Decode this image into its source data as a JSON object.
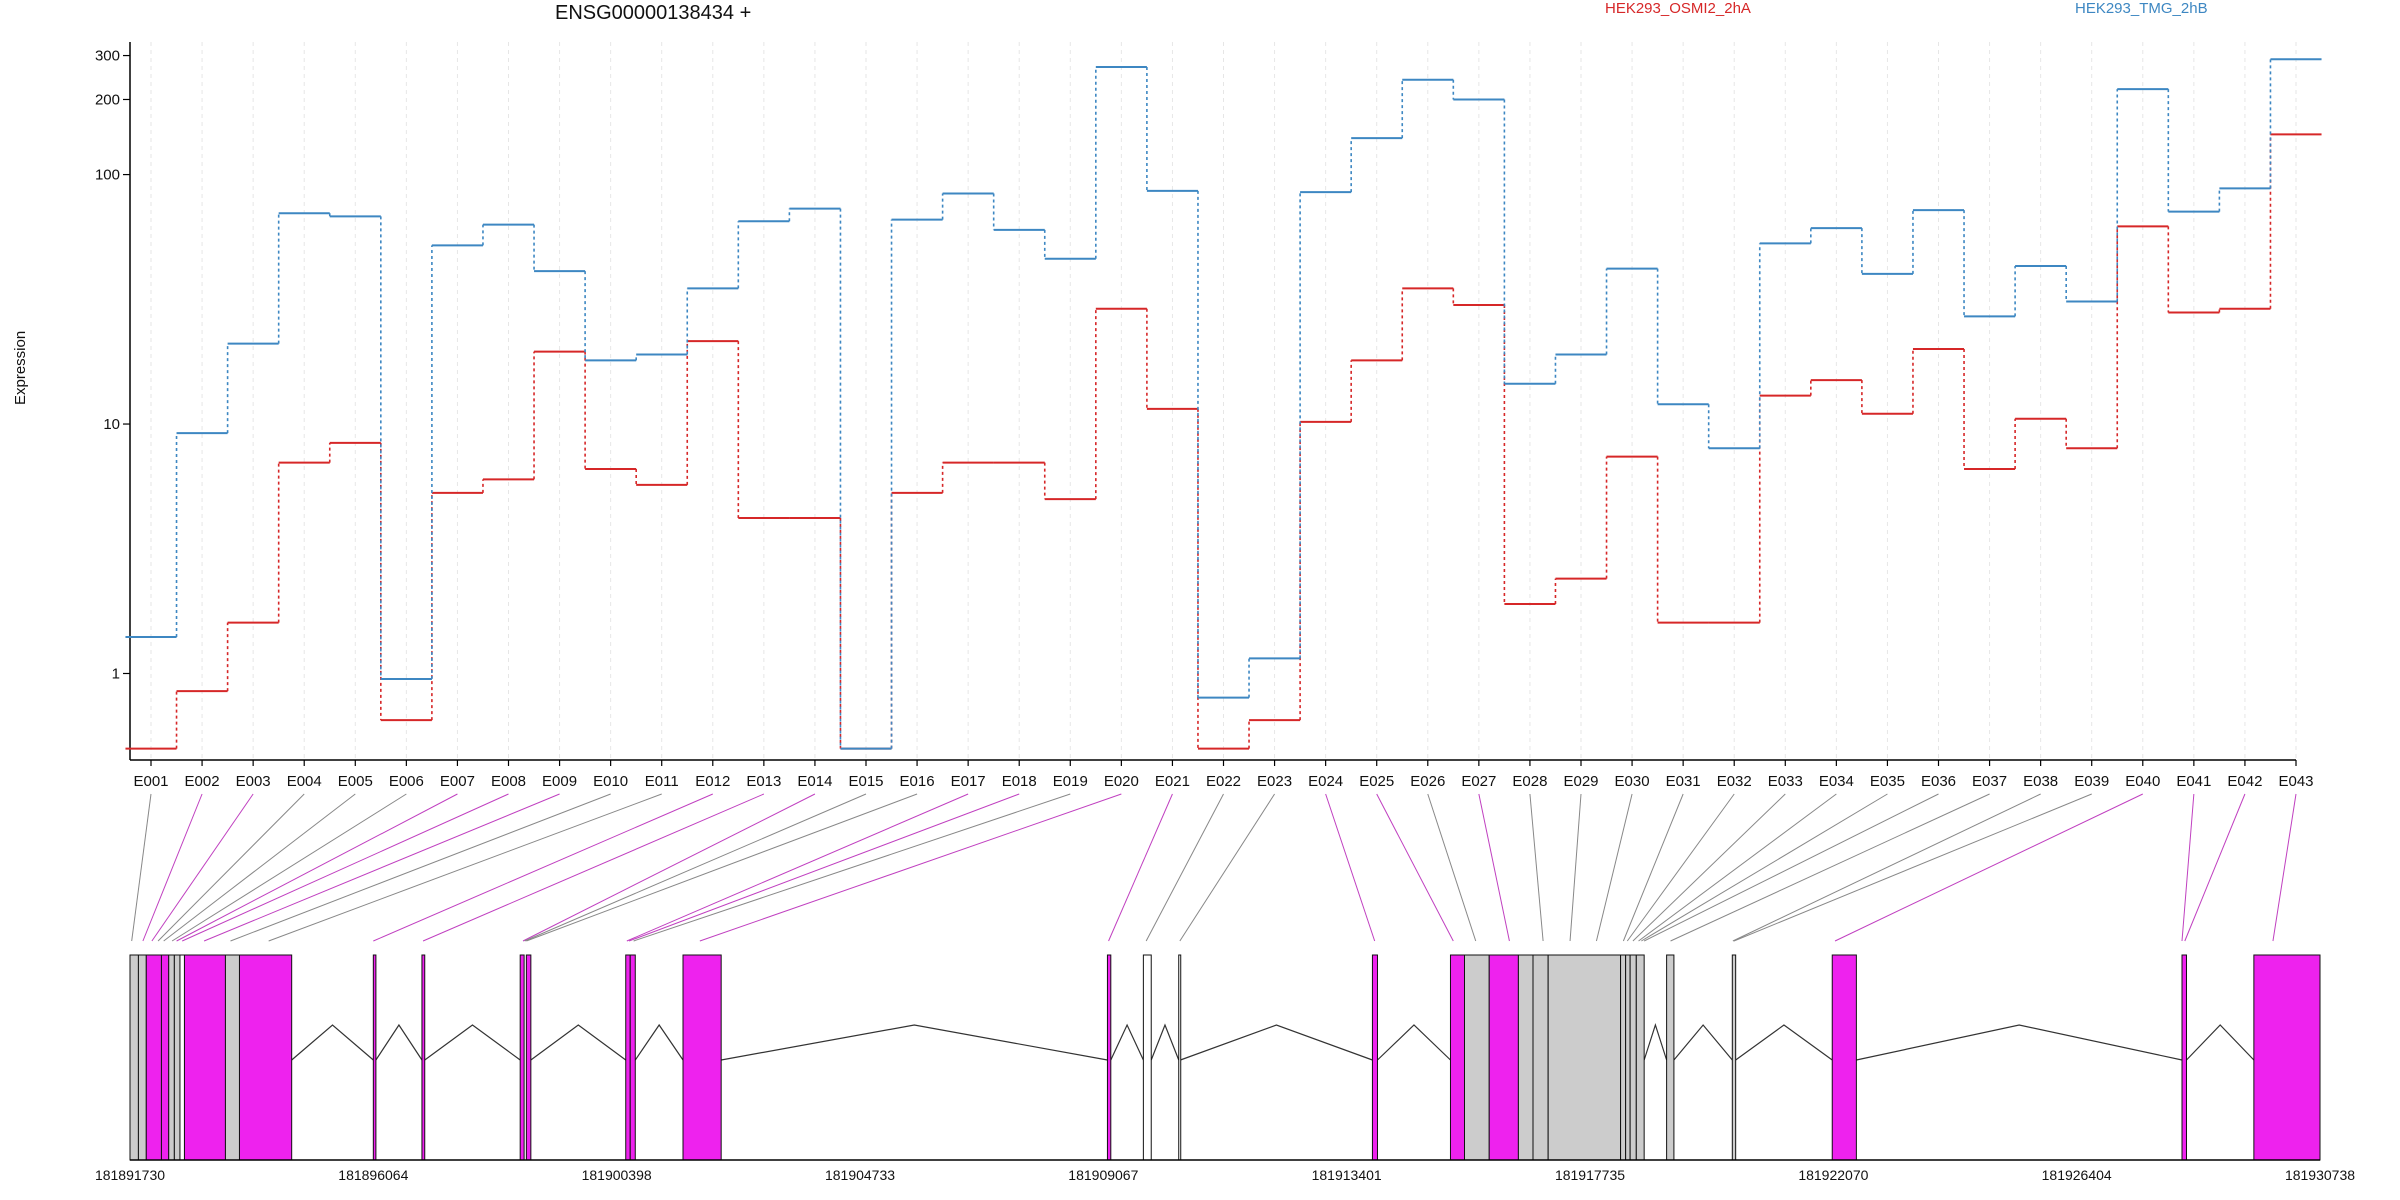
{
  "chart_data": {
    "type": "line",
    "title": "ENSG00000138434 +",
    "ylabel": "Expression",
    "yscale": "log",
    "ylim": [
      0.45,
      340
    ],
    "yticks": [
      "1",
      "10",
      "100",
      "200",
      "300"
    ],
    "ytick_values": [
      1,
      10,
      100,
      200,
      300
    ],
    "grid": "vertical",
    "legend_placement": "top",
    "categories": [
      "E001",
      "E002",
      "E003",
      "E004",
      "E005",
      "E006",
      "E007",
      "E008",
      "E009",
      "E010",
      "E011",
      "E012",
      "E013",
      "E014",
      "E015",
      "E016",
      "E017",
      "E018",
      "E019",
      "E020",
      "E021",
      "E022",
      "E023",
      "E024",
      "E025",
      "E026",
      "E027",
      "E028",
      "E029",
      "E030",
      "E031",
      "E032",
      "E033",
      "E034",
      "E035",
      "E036",
      "E037",
      "E038",
      "E039",
      "E040",
      "E041",
      "E042",
      "E043"
    ],
    "series": [
      {
        "name": "HEK293_OSMI2_2hA",
        "color": "#d62728",
        "values": [
          0.5,
          0.85,
          1.6,
          7.0,
          8.4,
          0.65,
          5.3,
          6.0,
          19.5,
          6.6,
          5.7,
          21.5,
          4.2,
          4.2,
          0.5,
          5.3,
          7.0,
          7.0,
          5.0,
          29,
          11.5,
          0.5,
          0.65,
          10.2,
          18,
          35,
          30,
          1.9,
          2.4,
          7.4,
          1.6,
          1.6,
          13,
          15,
          11,
          20,
          6.6,
          10.5,
          8.0,
          62,
          28,
          29,
          145
        ]
      },
      {
        "name": "HEK293_TMG_2hB",
        "color": "#3d87c2",
        "values": [
          1.4,
          9.2,
          21,
          70,
          68,
          0.95,
          52,
          63,
          41,
          18,
          19,
          35,
          65,
          73,
          0.5,
          66,
          84,
          60,
          46,
          270,
          86,
          0.8,
          1.15,
          85,
          140,
          240,
          200,
          14.5,
          19,
          42,
          12,
          8.0,
          53,
          61,
          40,
          72,
          27,
          43,
          31,
          220,
          71,
          88,
          290
        ]
      }
    ],
    "gene_model": {
      "axis_ticks": [
        "181891730",
        "181896064",
        "181900398",
        "181904733",
        "181909067",
        "181913401",
        "181917735",
        "181922070",
        "181926404",
        "181930738"
      ],
      "axis_values": [
        181891730,
        181896064,
        181900398,
        181904733,
        181909067,
        181913401,
        181917735,
        181922070,
        181926404,
        181930738
      ],
      "genome_range": [
        181891730,
        181930738
      ],
      "highlight_color": "#ee22ee",
      "neutral_color": "#cccccc",
      "exon_highlight": [
        false,
        true,
        true,
        false,
        false,
        false,
        true,
        true,
        true,
        false,
        false,
        true,
        true,
        true,
        false,
        false,
        true,
        true,
        false,
        true,
        true,
        false,
        false,
        true,
        true,
        false,
        true,
        false,
        false,
        false,
        false,
        false,
        false,
        false,
        false,
        false,
        false,
        false,
        false,
        true,
        true,
        true,
        true
      ],
      "exons": [
        [
          181891730,
          181891880
        ],
        [
          181891880,
          181892020
        ],
        [
          181892020,
          181892290
        ],
        [
          181892290,
          181892420
        ],
        [
          181892420,
          181892520
        ],
        [
          181892520,
          181892620
        ],
        [
          181892620,
          181892700
        ],
        [
          181892700,
          181893430
        ],
        [
          181893430,
          181893680
        ],
        [
          181893680,
          181894610
        ],
        [
          181896064,
          181896110
        ],
        [
          181896930,
          181896980
        ],
        [
          181898680,
          181898750
        ],
        [
          181898790,
          181898870
        ],
        [
          181900560,
          181900640
        ],
        [
          181900640,
          181900730
        ],
        [
          181901580,
          181902260
        ],
        [
          181909140,
          181909200
        ],
        [
          181909780,
          181909920
        ],
        [
          181910410,
          181910440
        ],
        [
          181913860,
          181913950
        ],
        [
          181915250,
          181915500
        ],
        [
          181915500,
          181915940
        ],
        [
          181915940,
          181916460
        ],
        [
          181916460,
          181916720
        ],
        [
          181916720,
          181916990
        ],
        [
          181916990,
          181918280
        ],
        [
          181918280,
          181918370
        ],
        [
          181918370,
          181918450
        ],
        [
          181918450,
          181918560
        ],
        [
          181918560,
          181918700
        ],
        [
          181919100,
          181919230
        ],
        [
          181920270,
          181920330
        ],
        [
          181922050,
          181922480
        ],
        [
          181928280,
          181928360
        ],
        [
          181929560,
          181930738
        ]
      ],
      "exon_colors": [
        "neutral",
        "neutral",
        "highlight",
        "highlight",
        "neutral",
        "neutral",
        "white",
        "highlight",
        "neutral",
        "highlight",
        "highlight",
        "highlight",
        "highlight",
        "highlight",
        "highlight",
        "highlight",
        "highlight",
        "highlight",
        "white",
        "white",
        "highlight",
        "highlight",
        "neutral",
        "highlight",
        "neutral",
        "neutral",
        "neutral",
        "neutral",
        "neutral",
        "neutral",
        "neutral",
        "neutral",
        "neutral",
        "highlight",
        "highlight",
        "highlight"
      ],
      "exon_anchor_positions": [
        181891760,
        181891960,
        181892120,
        181892230,
        181892330,
        181892480,
        181892560,
        181892660,
        181893050,
        181893520,
        181894200,
        181896064,
        181896950,
        181898730,
        181898760,
        181898790,
        181900580,
        181900620,
        181900700,
        181901880,
        181909160,
        181909830,
        181910430,
        181913900,
        181915300,
        181915700,
        181916300,
        181916900,
        181917380,
        181917850,
        181918330,
        181918400,
        181918500,
        181918600,
        181918650,
        181918700,
        181919170,
        181920280,
        181920300,
        181922100,
        181928280,
        181928330,
        181929900
      ]
    }
  }
}
